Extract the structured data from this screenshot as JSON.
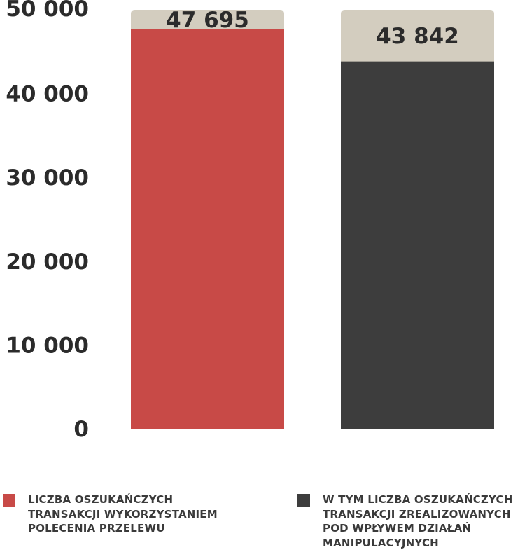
{
  "chart_data": {
    "type": "bar",
    "ylim": [
      0,
      50000
    ],
    "y_ticks": [
      {
        "value": 0,
        "label": "0"
      },
      {
        "value": 10000,
        "label": "10 000"
      },
      {
        "value": 20000,
        "label": "20 000"
      },
      {
        "value": 30000,
        "label": "30 000"
      },
      {
        "value": 40000,
        "label": "40 000"
      },
      {
        "value": 50000,
        "label": "50 000"
      }
    ],
    "series": [
      {
        "value": 47695,
        "label": "47 695",
        "color": "#c84a47"
      },
      {
        "value": 43842,
        "label": "43 842",
        "color": "#3d3d3d"
      }
    ],
    "cap_color": "#d3cdbf",
    "legend": [
      {
        "lines": [
          "LICZBA OSZUKAŃCZYCH",
          "TRANSAKCJI WYKORZYSTANIEM",
          "POLECENIA PRZELEWU"
        ],
        "color": "#c84a47"
      },
      {
        "lines": [
          "W TYM LICZBA OSZUKAŃCZYCH",
          "TRANSAKCJI ZREALIZOWANYCH",
          "POD WPŁYWEM DZIAŁAŃ",
          "MANIPULACYJNYCH"
        ],
        "color": "#3d3d3d"
      }
    ]
  }
}
